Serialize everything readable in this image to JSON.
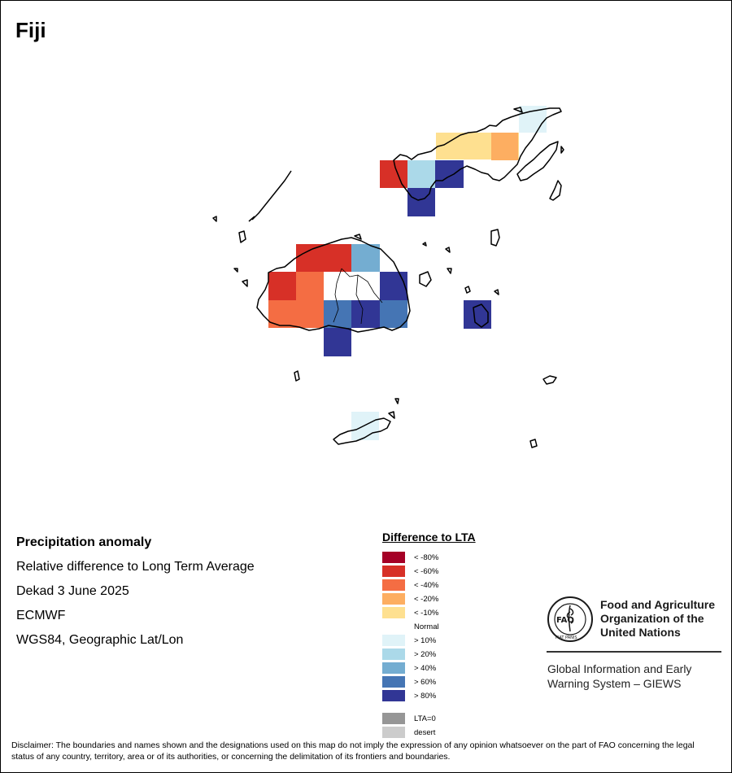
{
  "title": "Fiji",
  "info": {
    "heading": "Precipitation anomaly",
    "line1": "Relative difference to Long Term Average",
    "line2": "Dekad 3 June 2025",
    "line3": "ECMWF",
    "line4": "WGS84, Geographic Lat/Lon"
  },
  "legend": {
    "title": "Difference to LTA",
    "items": [
      {
        "label": "< -80%",
        "color": "#a50026"
      },
      {
        "label": "< -60%",
        "color": "#d73027"
      },
      {
        "label": "< -40%",
        "color": "#f46d43"
      },
      {
        "label": "< -20%",
        "color": "#fdae61"
      },
      {
        "label": "< -10%",
        "color": "#fee090"
      },
      {
        "label": "Normal",
        "color": "#ffffff"
      },
      {
        "label": "> 10%",
        "color": "#e0f3f8"
      },
      {
        "label": "> 20%",
        "color": "#abd9e9"
      },
      {
        "label": "> 40%",
        "color": "#74add1"
      },
      {
        "label": "> 60%",
        "color": "#4575b4"
      },
      {
        "label": "> 80%",
        "color": "#313695"
      },
      {
        "label": "LTA=0",
        "color": "#969696"
      },
      {
        "label": "desert",
        "color": "#cccccc"
      }
    ]
  },
  "map": {
    "cells": [
      {
        "cls": 6
      },
      {
        "cls": 4
      },
      {
        "cls": 4
      },
      {
        "cls": 4
      },
      {
        "cls": 4
      },
      {
        "cls": 3
      },
      {
        "cls": 1
      },
      {
        "cls": 7
      },
      {
        "cls": 10
      },
      {
        "cls": 10
      },
      {
        "cls": 1
      },
      {
        "cls": 1
      },
      {
        "cls": 1
      },
      {
        "cls": 8
      },
      {
        "cls": 1
      },
      {
        "cls": 2
      },
      {
        "cls": 10
      },
      {
        "cls": 2
      },
      {
        "cls": 2
      },
      {
        "cls": 9
      },
      {
        "cls": 10
      },
      {
        "cls": 9
      },
      {
        "cls": 10
      },
      {
        "cls": 10
      },
      {
        "cls": 6
      }
    ]
  },
  "fao": {
    "name_line1": "Food and Agriculture",
    "name_line2": "Organization of the",
    "name_line3": "United Nations",
    "logo_text": "FAO",
    "motto": "FIAT PANIS",
    "giews_line1": "Global Information and Early",
    "giews_line2": "Warning System – GIEWS"
  },
  "disclaimer": "Disclaimer: The boundaries and names shown and the designations used on this map do not imply the expression of any opinion whatsoever on the part of FAO concerning the legal status of any country, territory, area or of its authorities, or concerning the delimitation of its frontiers and boundaries."
}
